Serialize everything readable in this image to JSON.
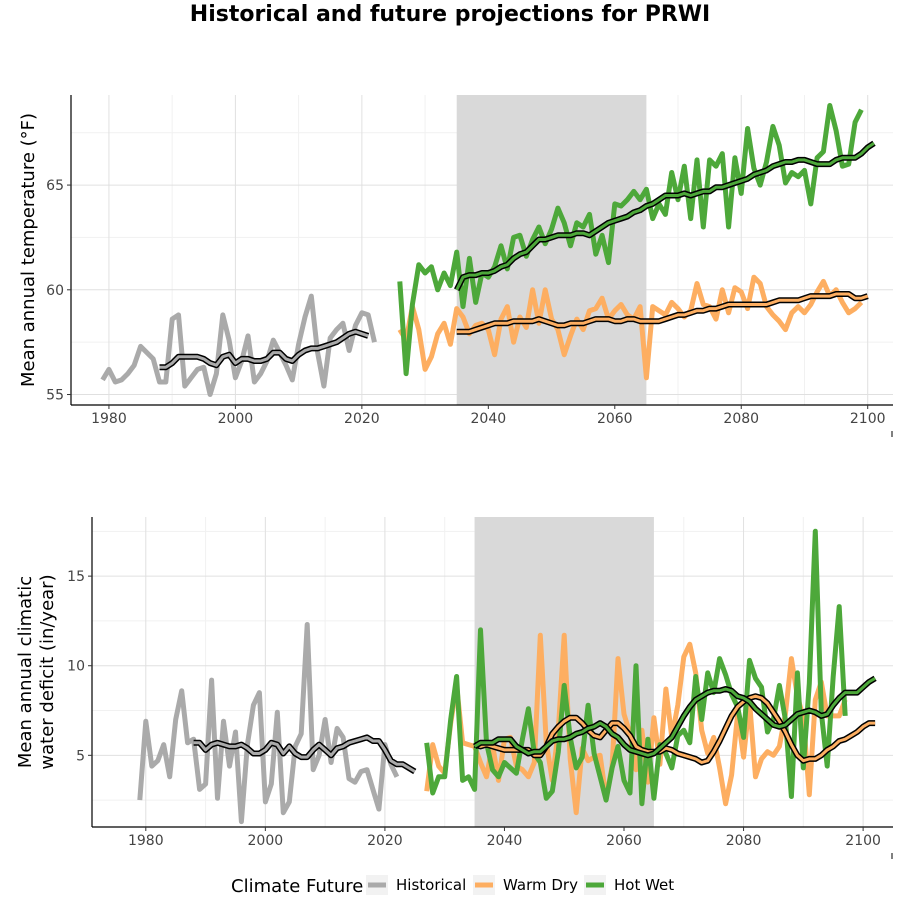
{
  "title": "Historical and future projections for PRWI",
  "legend": {
    "title": "Climate Future",
    "items": [
      {
        "label": "Historical",
        "color": "#aaaaaa"
      },
      {
        "label": "Warm Dry",
        "color": "#fdae61"
      },
      {
        "label": "Hot Wet",
        "color": "#4da83a"
      }
    ]
  },
  "chart_data": [
    {
      "type": "line",
      "ylabel": "Mean annual temperature (°F)",
      "xlabel": "",
      "xlim": [
        1974,
        2104
      ],
      "ylim": [
        54.5,
        69.3
      ],
      "xticks": [
        1980,
        2000,
        2020,
        2040,
        2060,
        2080,
        2100
      ],
      "yticks": [
        55,
        60,
        65
      ],
      "grid": true,
      "shaded_period": [
        2035,
        2065
      ],
      "series": [
        {
          "name": "Historical",
          "color": "#aaaaaa",
          "x_start": 1979,
          "values": [
            55.7,
            56.2,
            55.6,
            55.7,
            56.0,
            56.4,
            57.3,
            57.0,
            56.7,
            55.6,
            55.6,
            58.6,
            58.8,
            55.4,
            55.8,
            56.2,
            56.3,
            55.0,
            56.0,
            58.8,
            57.6,
            55.8,
            56.6,
            57.8,
            55.6,
            56.0,
            56.6,
            57.6,
            57.0,
            56.4,
            55.7,
            57.4,
            58.7,
            59.7,
            57.0,
            55.4,
            57.7,
            58.1,
            58.4,
            57.1,
            58.3,
            58.9,
            58.8,
            57.5
          ]
        },
        {
          "name": "Historical (smoothed)",
          "color": "#aaaaaa",
          "smoothed": true,
          "x_start": 1988,
          "values": [
            56.3,
            56.3,
            56.5,
            56.8,
            56.8,
            56.8,
            56.8,
            56.7,
            56.5,
            56.4,
            56.8,
            56.9,
            56.5,
            56.7,
            56.7,
            56.6,
            56.6,
            56.7,
            57.0,
            57.0,
            56.7,
            56.6,
            56.9,
            57.1,
            57.2,
            57.2,
            57.3,
            57.4,
            57.5,
            57.7,
            57.9,
            58.0,
            57.9,
            57.8
          ]
        },
        {
          "name": "Warm Dry",
          "color": "#fdae61",
          "x_start": 2026,
          "values": [
            58.1,
            57.6,
            59.2,
            58.1,
            56.2,
            56.8,
            57.9,
            58.4,
            57.4,
            59.1,
            58.7,
            57.9,
            58.3,
            58.4,
            58.1,
            56.9,
            58.6,
            59.2,
            57.5,
            58.7,
            58.2,
            60.0,
            58.4,
            60.0,
            58.6,
            58.1,
            56.9,
            57.8,
            58.6,
            58.1,
            59.0,
            59.1,
            59.6,
            58.6,
            59.0,
            59.3,
            58.8,
            58.6,
            59.2,
            55.8,
            59.2,
            59.0,
            58.8,
            59.4,
            59.1,
            58.7,
            59.0,
            60.3,
            59.3,
            59.2,
            58.6,
            60.0,
            58.9,
            60.1,
            59.9,
            59.1,
            60.6,
            60.3,
            59.2,
            58.8,
            58.5,
            58.1,
            58.9,
            59.2,
            58.9,
            59.3,
            59.9,
            60.4,
            59.7,
            60.0,
            59.4,
            58.9,
            59.1,
            59.4
          ]
        },
        {
          "name": "Warm Dry (smoothed)",
          "color": "#fdae61",
          "smoothed": true,
          "x_start": 2035,
          "values": [
            58.0,
            58.0,
            58.0,
            58.1,
            58.2,
            58.3,
            58.4,
            58.4,
            58.4,
            58.5,
            58.5,
            58.5,
            58.5,
            58.6,
            58.5,
            58.4,
            58.3,
            58.3,
            58.4,
            58.4,
            58.4,
            58.5,
            58.6,
            58.6,
            58.6,
            58.5,
            58.5,
            58.6,
            58.6,
            58.5,
            58.5,
            58.5,
            58.5,
            58.6,
            58.7,
            58.8,
            58.8,
            58.9,
            59.0,
            59.0,
            59.1,
            59.1,
            59.2,
            59.3,
            59.3,
            59.3,
            59.3,
            59.3,
            59.3,
            59.3,
            59.4,
            59.5,
            59.5,
            59.5,
            59.5,
            59.6,
            59.7,
            59.7,
            59.7,
            59.7,
            59.8,
            59.8,
            59.8,
            59.6,
            59.6,
            59.7
          ]
        },
        {
          "name": "Hot Wet",
          "color": "#4da83a",
          "x_start": 2026,
          "values": [
            60.4,
            56.0,
            59.3,
            61.2,
            60.8,
            61.1,
            60.0,
            60.8,
            60.2,
            61.8,
            59.2,
            61.5,
            59.4,
            60.8,
            60.6,
            61.1,
            62.1,
            61.0,
            62.5,
            62.6,
            61.6,
            62.4,
            63.0,
            62.2,
            62.9,
            63.9,
            63.2,
            62.1,
            63.2,
            63.0,
            63.6,
            61.7,
            62.6,
            61.3,
            64.1,
            64.0,
            64.3,
            64.7,
            64.3,
            64.8,
            63.4,
            64.1,
            63.6,
            65.6,
            64.3,
            65.9,
            63.4,
            66.2,
            63.0,
            66.2,
            65.9,
            66.5,
            63.0,
            66.3,
            64.6,
            67.7,
            65.8,
            65.0,
            66.1,
            67.8,
            66.9,
            65.1,
            65.6,
            65.4,
            65.7,
            64.1,
            66.3,
            66.6,
            68.8,
            67.6,
            65.9,
            66.0,
            68.0,
            68.6
          ]
        },
        {
          "name": "Hot Wet (smoothed)",
          "color": "#4da83a",
          "smoothed": true,
          "x_start": 2035,
          "values": [
            60.0,
            60.6,
            60.7,
            60.7,
            60.8,
            60.8,
            60.9,
            61.1,
            61.2,
            61.5,
            61.7,
            61.8,
            62.1,
            62.4,
            62.4,
            62.5,
            62.6,
            62.6,
            62.6,
            62.7,
            62.7,
            62.6,
            62.8,
            63.0,
            63.2,
            63.3,
            63.4,
            63.5,
            63.7,
            63.8,
            64.0,
            64.1,
            64.3,
            64.5,
            64.5,
            64.5,
            64.6,
            64.5,
            64.6,
            64.7,
            64.7,
            64.9,
            64.9,
            65.0,
            65.1,
            65.2,
            65.3,
            65.5,
            65.6,
            65.7,
            65.9,
            66.0,
            66.1,
            66.1,
            66.2,
            66.2,
            66.1,
            66.0,
            66.0,
            66.0,
            66.2,
            66.3,
            66.3,
            66.3,
            66.5,
            66.8,
            67.0
          ]
        }
      ]
    },
    {
      "type": "line",
      "ylabel": "Mean annual climatic\nwater deficit (in/year)",
      "xlabel": "",
      "xlim": [
        1971,
        2105
      ],
      "ylim": [
        1.0,
        18.3
      ],
      "xticks": [
        1980,
        2000,
        2020,
        2040,
        2060,
        2080,
        2100
      ],
      "yticks": [
        5,
        10,
        15
      ],
      "grid": true,
      "shaded_period": [
        2035,
        2065
      ],
      "series": [
        {
          "name": "Historical",
          "color": "#aaaaaa",
          "x_start": 1979,
          "values": [
            2.5,
            6.9,
            4.4,
            4.7,
            5.6,
            3.8,
            7.0,
            8.6,
            5.7,
            5.9,
            3.1,
            3.4,
            9.2,
            2.6,
            6.9,
            4.4,
            6.3,
            1.3,
            5.6,
            7.8,
            8.5,
            2.4,
            3.4,
            7.4,
            1.8,
            2.4,
            5.5,
            6.2,
            12.3,
            4.2,
            5.0,
            7.0,
            4.6,
            6.5,
            6.0,
            3.7,
            3.5,
            4.1,
            4.2,
            3.1,
            2.0,
            5.6,
            4.5,
            3.8
          ]
        },
        {
          "name": "Historical (smoothed)",
          "color": "#aaaaaa",
          "smoothed": true,
          "x_start": 1988,
          "values": [
            5.7,
            5.7,
            5.3,
            5.6,
            5.7,
            5.6,
            5.5,
            5.5,
            5.6,
            5.4,
            5.1,
            5.1,
            5.3,
            5.7,
            5.6,
            5.1,
            5.5,
            5.1,
            4.9,
            4.9,
            5.3,
            5.6,
            5.3,
            5.0,
            5.4,
            5.5,
            5.7,
            5.8,
            5.9,
            6.0,
            5.8,
            5.8,
            5.3,
            4.7,
            4.5,
            4.5,
            4.3,
            4.1
          ]
        },
        {
          "name": "Warm Dry",
          "color": "#fdae61",
          "x_start": 2027,
          "values": [
            3.0,
            5.6,
            4.4,
            4.0,
            6.8,
            8.9,
            5.7,
            5.6,
            5.5,
            4.6,
            3.8,
            5.6,
            3.6,
            5.9,
            6.0,
            4.4,
            4.2,
            3.8,
            4.6,
            11.7,
            5.7,
            3.6,
            6.4,
            11.7,
            4.8,
            1.8,
            5.4,
            4.7,
            4.9,
            5.0,
            2.6,
            4.4,
            10.4,
            7.3,
            6.2,
            4.2,
            6.4,
            3.5,
            7.1,
            4.5,
            8.7,
            6.0,
            7.8,
            10.5,
            11.2,
            9.6,
            6.4,
            5.1,
            6.0,
            4.3,
            2.3,
            3.9,
            7.3,
            4.9,
            8.0,
            3.8,
            4.8,
            5.2,
            5.0,
            5.5,
            7.3,
            10.4,
            8.3,
            7.1,
            2.8,
            8.1,
            9.1,
            7.2,
            7.2,
            7.2,
            8.1
          ]
        },
        {
          "name": "Warm Dry (smoothed)",
          "color": "#fdae61",
          "smoothed": true,
          "x_start": 2035,
          "values": [
            5.6,
            5.5,
            5.6,
            5.5,
            5.4,
            5.3,
            5.3,
            5.3,
            5.3,
            5.3,
            5.0,
            5.0,
            5.5,
            6.2,
            6.6,
            6.9,
            7.1,
            7.1,
            6.8,
            6.4,
            6.1,
            6.0,
            6.4,
            6.8,
            6.8,
            6.5,
            6.1,
            5.5,
            5.3,
            5.2,
            5.2,
            5.2,
            5.4,
            5.3,
            5.1,
            5.0,
            4.9,
            4.8,
            4.6,
            4.7,
            5.2,
            5.8,
            6.5,
            7.2,
            7.7,
            8.0,
            8.2,
            8.3,
            8.2,
            7.9,
            7.4,
            6.9,
            6.3,
            5.6,
            5.0,
            4.7,
            4.8,
            4.8,
            5.0,
            5.3,
            5.5,
            5.8,
            5.9,
            6.1,
            6.3,
            6.6,
            6.8,
            6.8
          ]
        },
        {
          "name": "Hot Wet",
          "color": "#4da83a",
          "x_start": 2027,
          "values": [
            5.7,
            2.9,
            3.8,
            3.8,
            7.0,
            9.4,
            3.6,
            3.8,
            3.1,
            12.0,
            5.7,
            4.2,
            3.8,
            4.6,
            4.3,
            4.0,
            5.9,
            7.6,
            5.1,
            4.6,
            2.6,
            3.0,
            5.2,
            8.9,
            6.0,
            4.3,
            4.9,
            7.8,
            5.1,
            3.8,
            2.5,
            4.3,
            5.5,
            3.6,
            2.9,
            10.0,
            2.3,
            5.9,
            2.6,
            5.6,
            5.1,
            4.3,
            6.1,
            6.4,
            5.7,
            9.4,
            7.0,
            9.6,
            8.5,
            10.4,
            9.5,
            8.4,
            7.7,
            6.0,
            10.3,
            9.3,
            8.8,
            6.3,
            7.0,
            8.9,
            7.0,
            2.7,
            9.6,
            4.3,
            9.0,
            17.5,
            7.4,
            4.4,
            9.4,
            13.3,
            7.2
          ]
        },
        {
          "name": "Hot Wet (smoothed)",
          "color": "#4da83a",
          "smoothed": true,
          "x_start": 2035,
          "values": [
            5.5,
            5.7,
            5.7,
            5.7,
            5.9,
            5.9,
            5.9,
            5.5,
            5.3,
            5.1,
            5.2,
            5.2,
            5.5,
            5.8,
            5.9,
            5.9,
            6.0,
            6.2,
            6.3,
            6.5,
            6.6,
            6.8,
            6.6,
            6.2,
            6.0,
            5.6,
            5.3,
            5.2,
            5.1,
            5.0,
            5.1,
            5.4,
            5.7,
            6.0,
            6.6,
            7.2,
            7.7,
            8.1,
            8.3,
            8.5,
            8.6,
            8.6,
            8.7,
            8.6,
            8.3,
            8.2,
            8.0,
            7.6,
            7.3,
            7.0,
            6.7,
            6.6,
            6.7,
            7.0,
            7.3,
            7.4,
            7.5,
            7.4,
            7.2,
            7.3,
            7.8,
            8.2,
            8.5,
            8.5,
            8.5,
            8.8,
            9.1,
            9.3
          ]
        }
      ]
    }
  ]
}
